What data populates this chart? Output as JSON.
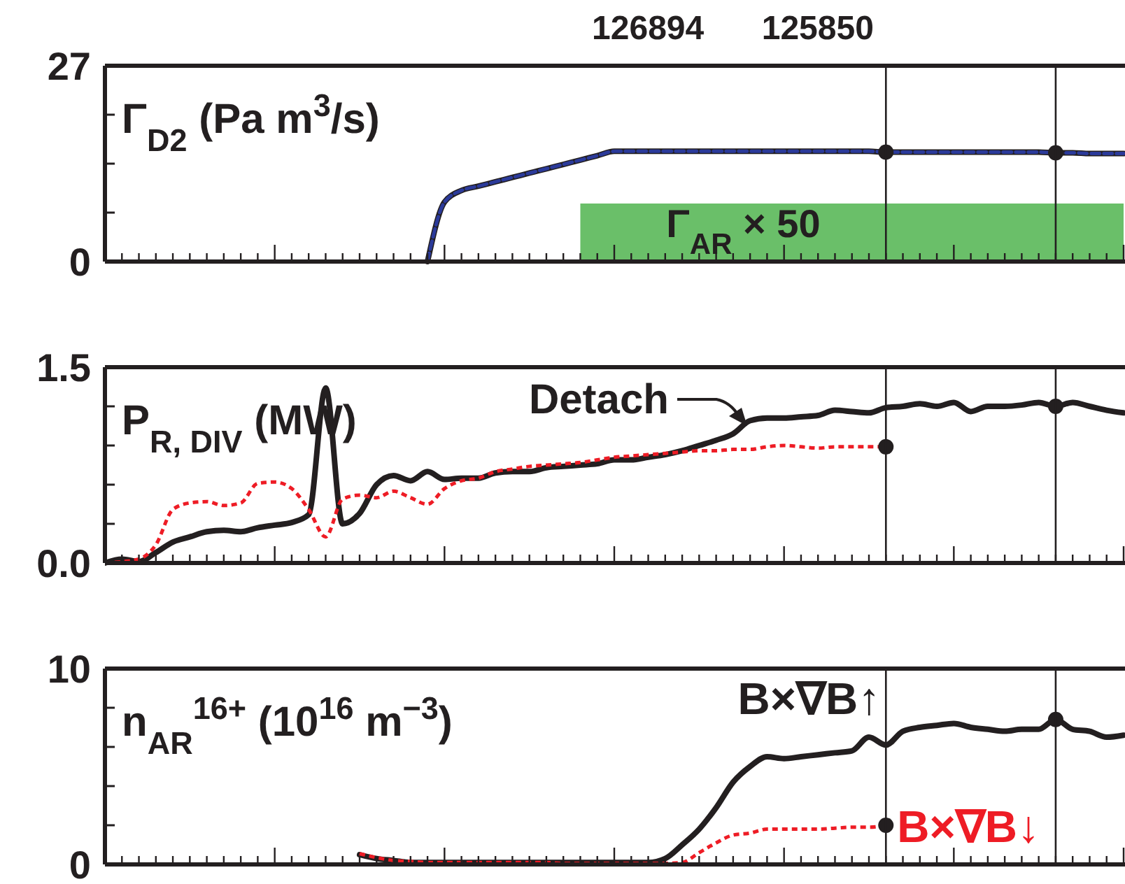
{
  "chart_data": [
    {
      "type": "line",
      "title": "Γ$_{D2}$ (Pa m$^{3}$/s)",
      "annotations": [
        "126894",
        "125850"
      ],
      "categories": [
        null,
        null,
        null,
        null,
        null,
        null,
        null,
        null,
        null,
        null,
        null,
        null,
        null,
        null,
        null,
        null,
        null,
        null,
        null,
        null,
        null,
        null,
        null,
        null,
        null,
        null,
        null,
        null,
        null,
        null,
        null,
        null,
        null,
        null,
        null,
        null,
        null,
        null,
        null,
        null,
        null,
        null,
        null,
        null,
        null,
        null,
        null,
        null,
        null,
        null,
        null,
        null,
        null,
        null,
        null,
        null,
        null,
        null,
        null,
        null,
        null
      ],
      "ylim": [
        0,
        27
      ],
      "yticks": [
        0,
        {
          "value": 6.75,
          "label": null
        },
        {
          "value": 13.5,
          "label": null
        },
        {
          "value": 20.25,
          "label": null
        },
        27
      ],
      "tick_labels": "y",
      "series": [
        {
          "type": "area",
          "name": "Γ$_{AR}$ × 50",
          "color": "#6abf69",
          "values": [
            null,
            null,
            null,
            null,
            null,
            null,
            null,
            null,
            null,
            null,
            null,
            null,
            null,
            null,
            null,
            null,
            null,
            null,
            null,
            null,
            null,
            null,
            null,
            null,
            null,
            null,
            null,
            null,
            8,
            8,
            8,
            8,
            8,
            8,
            8,
            8,
            8,
            8,
            8,
            8,
            8,
            8,
            8,
            8,
            8,
            8,
            8,
            8,
            8,
            8,
            8,
            8,
            8,
            8,
            8,
            8,
            8,
            8,
            8,
            8,
            8
          ]
        },
        {
          "color": "#231f20",
          "line_style": "solid",
          "values": [
            null,
            null,
            null,
            null,
            null,
            null,
            null,
            null,
            null,
            null,
            null,
            null,
            null,
            null,
            null,
            null,
            null,
            null,
            null,
            0,
            8.2,
            9.8,
            10.4,
            11.0,
            11.6,
            12.2,
            12.8,
            13.4,
            14.0,
            14.6,
            15.2,
            15.2,
            15.2,
            15.2,
            15.2,
            15.2,
            15.2,
            15.2,
            15.2,
            15.2,
            15.2,
            15.2,
            15.2,
            15.2,
            15.2,
            15.2,
            15.1,
            15.1,
            15.1,
            15.1,
            15.1,
            15.1,
            15.1,
            15.1,
            15.1,
            15.1,
            15.0,
            15.0,
            14.9,
            14.9,
            14.9
          ]
        },
        {
          "color": "#2b3a9a",
          "line_style": "dashed",
          "values": [
            null,
            null,
            null,
            null,
            null,
            null,
            null,
            null,
            null,
            null,
            null,
            null,
            null,
            null,
            null,
            null,
            null,
            null,
            null,
            0,
            8.2,
            9.8,
            10.4,
            11.0,
            11.6,
            12.2,
            12.8,
            13.4,
            14.0,
            14.6,
            15.2,
            15.2,
            15.2,
            15.2,
            15.2,
            15.2,
            15.2,
            15.2,
            15.2,
            15.2,
            15.2,
            15.2,
            15.2,
            15.2,
            15.2,
            15.2,
            15.1,
            15.1,
            15.1,
            15.1,
            15.1,
            15.1,
            15.1,
            15.1,
            15.1,
            15.1,
            15.0,
            15.0,
            14.9,
            14.9,
            14.9
          ]
        },
        {
          "type": "scatter",
          "color": "#231f20",
          "marker": "circle",
          "values": [
            null,
            null,
            null,
            null,
            null,
            null,
            null,
            null,
            null,
            null,
            null,
            null,
            null,
            null,
            null,
            null,
            null,
            null,
            null,
            null,
            null,
            null,
            null,
            null,
            null,
            null,
            null,
            null,
            null,
            null,
            null,
            null,
            null,
            null,
            null,
            null,
            null,
            null,
            null,
            null,
            null,
            null,
            null,
            null,
            null,
            null,
            15.1,
            null,
            null,
            null,
            null,
            null,
            null,
            null,
            null,
            null,
            15.0,
            null,
            null,
            null,
            null
          ]
        }
      ]
    },
    {
      "type": "line",
      "title": "P$_{R, DIV}$ (MW)",
      "annotations": [
        "Detach"
      ],
      "categories": [
        null,
        null,
        null,
        null,
        null,
        null,
        null,
        null,
        null,
        null,
        null,
        null,
        null,
        null,
        null,
        null,
        null,
        null,
        null,
        null,
        null,
        null,
        null,
        null,
        null,
        null,
        null,
        null,
        null,
        null,
        null,
        null,
        null,
        null,
        null,
        null,
        null,
        null,
        null,
        null,
        null,
        null,
        null,
        null,
        null,
        null,
        null,
        null,
        null,
        null,
        null,
        null,
        null,
        null,
        null,
        null,
        null,
        null,
        null,
        null,
        null
      ],
      "ylim": [
        0,
        1.5
      ],
      "yticks": [
        {
          "value": 0,
          "label": "0.0"
        },
        {
          "value": 0.3,
          "label": null
        },
        {
          "value": 0.6,
          "label": null
        },
        {
          "value": 0.9,
          "label": null
        },
        {
          "value": 1.2,
          "label": null
        },
        {
          "value": 1.5,
          "label": "1.5"
        }
      ],
      "tick_labels": "y",
      "series": [
        {
          "color": "#231f20",
          "line_style": "solid",
          "values": [
            0,
            0.03,
            0.01,
            0.08,
            0.16,
            0.2,
            0.24,
            0.25,
            0.24,
            0.27,
            0.29,
            0.31,
            0.37,
            1.34,
            0.3,
            0.38,
            0.6,
            0.67,
            0.63,
            0.7,
            0.64,
            0.65,
            0.65,
            0.69,
            0.7,
            0.7,
            0.73,
            0.74,
            0.75,
            0.76,
            0.79,
            0.79,
            0.81,
            0.83,
            0.86,
            0.9,
            0.94,
            0.99,
            1.09,
            1.11,
            1.11,
            1.12,
            1.13,
            1.17,
            1.16,
            1.15,
            1.19,
            1.2,
            1.22,
            1.2,
            1.23,
            1.16,
            1.2,
            1.2,
            1.21,
            1.23,
            1.2,
            1.23,
            1.2,
            1.17,
            1.15
          ]
        },
        {
          "color": "#ee1c25",
          "line_style": "dotted",
          "values": [
            0,
            0.01,
            0.03,
            0.14,
            0.41,
            0.46,
            0.47,
            0.44,
            0.46,
            0.61,
            0.62,
            0.57,
            0.41,
            0.2,
            0.49,
            0.52,
            0.5,
            0.55,
            0.5,
            0.45,
            0.57,
            0.63,
            0.65,
            0.7,
            0.72,
            0.74,
            0.75,
            0.76,
            0.77,
            0.79,
            0.81,
            0.82,
            0.83,
            0.84,
            0.85,
            0.86,
            0.86,
            0.87,
            0.87,
            0.89,
            0.9,
            0.89,
            0.88,
            0.89,
            0.89,
            0.89,
            0.89,
            null,
            null,
            null,
            null,
            null,
            null,
            null,
            null,
            null,
            null,
            null,
            null,
            null,
            null
          ]
        },
        {
          "type": "scatter",
          "color": "#231f20",
          "marker": "circle",
          "values": [
            null,
            null,
            null,
            null,
            null,
            null,
            null,
            null,
            null,
            null,
            null,
            null,
            null,
            null,
            null,
            null,
            null,
            null,
            null,
            null,
            null,
            null,
            null,
            null,
            null,
            null,
            null,
            null,
            null,
            null,
            null,
            null,
            null,
            null,
            null,
            null,
            null,
            null,
            null,
            null,
            null,
            null,
            null,
            null,
            null,
            null,
            0.89,
            null,
            null,
            null,
            null,
            null,
            null,
            null,
            null,
            null,
            1.2,
            null,
            null,
            null,
            null
          ]
        }
      ]
    },
    {
      "type": "line",
      "title": "n$_{AR}$$^{16+}$ (10$^{16}$ m$^{−3}$)",
      "categories": [
        null,
        null,
        null,
        null,
        null,
        null,
        null,
        null,
        null,
        null,
        null,
        null,
        null,
        null,
        null,
        null,
        null,
        null,
        null,
        null,
        null,
        null,
        null,
        null,
        null,
        null,
        null,
        null,
        null,
        null,
        null,
        null,
        null,
        null,
        null,
        null,
        null,
        null,
        null,
        null,
        null,
        null,
        null,
        null,
        null,
        null,
        null,
        null,
        null,
        null,
        null,
        null,
        null,
        null,
        null,
        null,
        null,
        null,
        null,
        null,
        null
      ],
      "ylim": [
        0,
        10
      ],
      "yticks": [
        0,
        {
          "value": 2,
          "label": null
        },
        {
          "value": 4,
          "label": null
        },
        {
          "value": 6,
          "label": null
        },
        {
          "value": 8,
          "label": null
        },
        10
      ],
      "tick_labels": "y",
      "series": [
        {
          "name": "B×∇B↑",
          "color": "#231f20",
          "line_style": "solid",
          "values": [
            null,
            null,
            null,
            null,
            null,
            null,
            null,
            null,
            null,
            null,
            null,
            null,
            null,
            null,
            null,
            0.5,
            0.3,
            0.2,
            0.1,
            0.1,
            0.1,
            0.1,
            0.1,
            0.1,
            0.1,
            0.1,
            0.1,
            0.1,
            0.1,
            0.1,
            0.1,
            0.1,
            0.1,
            0.3,
            1.0,
            1.8,
            2.9,
            4.2,
            5.0,
            5.5,
            5.4,
            5.5,
            5.6,
            5.7,
            5.8,
            6.5,
            6.1,
            6.8,
            7.0,
            7.1,
            7.2,
            7.0,
            6.9,
            6.8,
            6.9,
            6.9,
            7.4,
            6.9,
            6.8,
            6.5,
            6.6
          ]
        },
        {
          "name": "B×∇B↓",
          "color": "#ee1c25",
          "line_style": "dotted",
          "values": [
            null,
            null,
            null,
            null,
            null,
            null,
            null,
            null,
            null,
            null,
            null,
            null,
            null,
            null,
            null,
            0.55,
            0.35,
            0.2,
            0.15,
            0.1,
            0.1,
            0.1,
            0.1,
            0.1,
            0.1,
            0.1,
            0.1,
            0.05,
            0.05,
            0.05,
            0.05,
            0.05,
            0.05,
            0.05,
            0.1,
            0.6,
            1.1,
            1.5,
            1.6,
            1.8,
            1.8,
            1.8,
            1.8,
            1.85,
            1.9,
            1.9,
            2.0,
            null,
            null,
            null,
            null,
            null,
            null,
            null,
            null,
            null,
            null,
            null,
            null,
            null,
            null
          ]
        },
        {
          "type": "scatter",
          "color": "#231f20",
          "marker": "circle",
          "values": [
            null,
            null,
            null,
            null,
            null,
            null,
            null,
            null,
            null,
            null,
            null,
            null,
            null,
            null,
            null,
            null,
            null,
            null,
            null,
            null,
            null,
            null,
            null,
            null,
            null,
            null,
            null,
            null,
            null,
            null,
            null,
            null,
            null,
            null,
            null,
            null,
            null,
            null,
            null,
            null,
            null,
            null,
            null,
            null,
            null,
            null,
            2.0,
            null,
            null,
            null,
            null,
            null,
            null,
            null,
            null,
            null,
            7.4,
            null,
            null,
            null,
            null
          ]
        }
      ]
    }
  ]
}
